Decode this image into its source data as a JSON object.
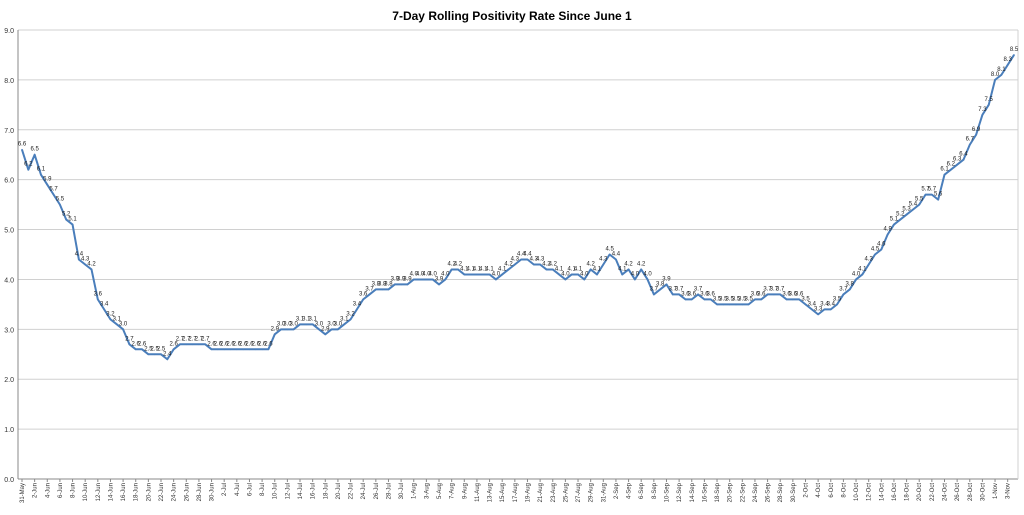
{
  "chart_data": {
    "type": "line",
    "title": "7-Day Rolling Positivity Rate Since June 1",
    "xlabel": "",
    "ylabel": "",
    "ylim": [
      0,
      9
    ],
    "yticks": [
      "0.0",
      "1.0",
      "2.0",
      "3.0",
      "4.0",
      "5.0",
      "6.0",
      "7.0",
      "8.0",
      "9.0"
    ],
    "grid": true,
    "legend": "none",
    "color": "#4a7ebb",
    "x": [
      "31-May",
      "1-Jun",
      "2-Jun",
      "3-Jun",
      "4-Jun",
      "5-Jun",
      "6-Jun",
      "7-Jun",
      "8-Jun",
      "9-Jun",
      "10-Jun",
      "11-Jun",
      "12-Jun",
      "13-Jun",
      "14-Jun",
      "15-Jun",
      "16-Jun",
      "17-Jun",
      "18-Jun",
      "19-Jun",
      "20-Jun",
      "21-Jun",
      "22-Jun",
      "23-Jun",
      "24-Jun",
      "25-Jun",
      "26-Jun",
      "27-Jun",
      "28-Jun",
      "29-Jun",
      "30-Jun",
      "1-Jul",
      "2-Jul",
      "3-Jul",
      "4-Jul",
      "5-Jul",
      "6-Jul",
      "7-Jul",
      "8-Jul",
      "9-Jul",
      "10-Jul",
      "11-Jul",
      "12-Jul",
      "13-Jul",
      "14-Jul",
      "15-Jul",
      "16-Jul",
      "17-Jul",
      "18-Jul",
      "19-Jul",
      "20-Jul",
      "21-Jul",
      "22-Jul",
      "23-Jul",
      "24-Jul",
      "25-Jul",
      "26-Jul",
      "27-Jul",
      "28-Jul",
      "29-Jul",
      "30-Jul",
      "31-Jul",
      "1-Aug",
      "2-Aug",
      "3-Aug",
      "4-Aug",
      "5-Aug",
      "6-Aug",
      "7-Aug",
      "8-Aug",
      "9-Aug",
      "10-Aug",
      "11-Aug",
      "12-Aug",
      "13-Aug",
      "14-Aug",
      "15-Aug",
      "16-Aug",
      "17-Aug",
      "18-Aug",
      "19-Aug",
      "20-Aug",
      "21-Aug",
      "22-Aug",
      "23-Aug",
      "24-Aug",
      "25-Aug",
      "26-Aug",
      "27-Aug",
      "28-Aug",
      "29-Aug",
      "30-Aug",
      "31-Aug",
      "1-Sep",
      "2-Sep",
      "3-Sep",
      "4-Sep",
      "5-Sep",
      "6-Sep",
      "7-Sep",
      "8-Sep",
      "9-Sep",
      "10-Sep",
      "11-Sep",
      "12-Sep",
      "13-Sep",
      "14-Sep",
      "15-Sep",
      "16-Sep",
      "17-Sep",
      "18-Sep",
      "19-Sep",
      "20-Sep",
      "21-Sep",
      "22-Sep",
      "23-Sep",
      "24-Sep",
      "25-Sep",
      "26-Sep",
      "27-Sep",
      "28-Sep",
      "29-Sep",
      "30-Sep",
      "1-Oct",
      "2-Oct",
      "3-Oct",
      "4-Oct",
      "5-Oct",
      "6-Oct",
      "7-Oct",
      "8-Oct",
      "9-Oct",
      "10-Oct",
      "11-Oct",
      "12-Oct",
      "13-Oct",
      "14-Oct",
      "15-Oct",
      "16-Oct",
      "17-Oct",
      "18-Oct",
      "19-Oct",
      "20-Oct",
      "21-Oct",
      "22-Oct",
      "23-Oct",
      "24-Oct",
      "25-Oct",
      "26-Oct",
      "27-Oct",
      "28-Oct",
      "29-Oct",
      "30-Oct",
      "31-Oct",
      "1-Nov",
      "2-Nov",
      "3-Nov",
      "4-Nov"
    ],
    "xticks": [
      "31-May",
      "2-Jun",
      "4-Jun",
      "6-Jun",
      "8-Jun",
      "10-Jun",
      "12-Jun",
      "14-Jun",
      "16-Jun",
      "18-Jun",
      "20-Jun",
      "22-Jun",
      "24-Jun",
      "26-Jun",
      "28-Jun",
      "30-Jun",
      "2-Jul",
      "4-Jul",
      "6-Jul",
      "8-Jul",
      "10-Jul",
      "12-Jul",
      "14-Jul",
      "16-Jul",
      "18-Jul",
      "20-Jul",
      "22-Jul",
      "24-Jul",
      "26-Jul",
      "28-Jul",
      "30-Jul",
      "1-Aug",
      "3-Aug",
      "5-Aug",
      "7-Aug",
      "9-Aug",
      "11-Aug",
      "13-Aug",
      "15-Aug",
      "17-Aug",
      "19-Aug",
      "21-Aug",
      "23-Aug",
      "25-Aug",
      "27-Aug",
      "29-Aug",
      "31-Aug",
      "2-Sep",
      "4-Sep",
      "6-Sep",
      "8-Sep",
      "10-Sep",
      "12-Sep",
      "14-Sep",
      "16-Sep",
      "18-Sep",
      "20-Sep",
      "22-Sep",
      "24-Sep",
      "26-Sep",
      "28-Sep",
      "30-Sep",
      "2-Oct",
      "4-Oct",
      "6-Oct",
      "8-Oct",
      "10-Oct",
      "12-Oct",
      "14-Oct",
      "16-Oct",
      "18-Oct",
      "20-Oct",
      "22-Oct",
      "24-Oct",
      "26-Oct",
      "28-Oct",
      "30-Oct",
      "1-Nov",
      "3-Nov"
    ],
    "series": [
      {
        "values": [
          6.6,
          6.2,
          6.5,
          6.1,
          5.9,
          5.7,
          5.5,
          5.2,
          5.1,
          4.4,
          4.3,
          4.2,
          3.6,
          3.4,
          3.2,
          3.1,
          3.0,
          2.7,
          2.6,
          2.6,
          2.5,
          2.5,
          2.5,
          2.4,
          2.6,
          2.7,
          2.7,
          2.7,
          2.7,
          2.7,
          2.6,
          2.6,
          2.6,
          2.6,
          2.6,
          2.6,
          2.6,
          2.6,
          2.6,
          2.6,
          2.9,
          3.0,
          3.0,
          3.0,
          3.1,
          3.1,
          3.1,
          3.0,
          2.9,
          3.0,
          3.0,
          3.1,
          3.2,
          3.4,
          3.6,
          3.7,
          3.8,
          3.8,
          3.8,
          3.9,
          3.9,
          3.9,
          4.0,
          4.0,
          4.0,
          4.0,
          3.9,
          4.0,
          4.2,
          4.2,
          4.1,
          4.1,
          4.1,
          4.1,
          4.1,
          4.0,
          4.1,
          4.2,
          4.3,
          4.4,
          4.4,
          4.3,
          4.3,
          4.2,
          4.2,
          4.1,
          4.0,
          4.1,
          4.1,
          4.0,
          4.2,
          4.1,
          4.3,
          4.5,
          4.4,
          4.1,
          4.2,
          4.0,
          4.2,
          4.0,
          3.7,
          3.8,
          3.9,
          3.7,
          3.7,
          3.6,
          3.6,
          3.7,
          3.6,
          3.6,
          3.5,
          3.5,
          3.5,
          3.5,
          3.5,
          3.5,
          3.6,
          3.6,
          3.7,
          3.7,
          3.7,
          3.6,
          3.6,
          3.6,
          3.5,
          3.4,
          3.3,
          3.4,
          3.4,
          3.5,
          3.7,
          3.8,
          4.0,
          4.1,
          4.3,
          4.5,
          4.6,
          4.9,
          5.1,
          5.2,
          5.3,
          5.4,
          5.5,
          5.7,
          5.7,
          5.6,
          6.1,
          6.2,
          6.3,
          6.4,
          6.7,
          6.9,
          7.3,
          7.5,
          8.0,
          8.1,
          8.3,
          8.5
        ],
        "labels": [
          "6.6",
          "6.2",
          "6.5",
          "6.1",
          "5.9",
          "5.7",
          "5.5",
          "5.2",
          "5.1",
          "4.4",
          "4.3",
          "4.2",
          "3.6",
          "3.4",
          "3.2",
          "3.1",
          "3.0",
          "2.7",
          "2.6",
          "2.6",
          "2.5",
          "2.5",
          "2.5",
          "2.4",
          "2.6",
          "2.7",
          "2.7",
          "2.7",
          "2.7",
          "2.7",
          "2.6",
          "2.6",
          "2.6",
          "2.6",
          "2.6",
          "2.6",
          "2.6",
          "2.6",
          "2.6",
          "2.6",
          "2.9",
          "3.0",
          "3.0",
          "3.0",
          "3.1",
          "3.1",
          "3.1",
          "3.0",
          "2.9",
          "3.0",
          "3.0",
          "3.1",
          "3.2",
          "3.4",
          "3.6",
          "3.7",
          "3.8",
          "3.8",
          "3.8",
          "3.9",
          "3.9",
          "3.9",
          "4.0",
          "4.0",
          "4.0",
          "4.0",
          "3.9",
          "4.0",
          "4.2",
          "4.2",
          "4.1",
          "4.1",
          "4.1",
          "4.1",
          "4.1",
          "4.0",
          "4.1",
          "4.2",
          "4.3",
          "4.4",
          "4.4",
          "4.3",
          "4.3",
          "4.2",
          "4.2",
          "4.1",
          "4.0",
          "4.1",
          "4.1",
          "4.0",
          "4.2",
          "4.1",
          "4.3",
          "4.5",
          "4.4",
          "4.1",
          "4.2",
          "4.0",
          "4.2",
          "4.0",
          "3.7",
          "3.8",
          "3.9",
          "3.7",
          "3.7",
          "3.6",
          "3.6",
          "3.7",
          "3.6",
          "3.6",
          "3.5",
          "3.5",
          "3.5",
          "3.5",
          "3.5",
          "3.5",
          "3.6",
          "3.6",
          "3.7",
          "3.7",
          "3.7",
          "3.6",
          "3.6",
          "3.6",
          "3.5",
          "3.4",
          "3.3",
          "3.4",
          "3.4",
          "3.5",
          "3.7",
          "3.8",
          "4.0",
          "4.1",
          "4.3",
          "4.5",
          "4.6",
          "4.9",
          "5.1",
          "5.2",
          "5.3",
          "5.4",
          "5.5",
          "5.7",
          "5.7",
          "5.6",
          "6.1",
          "6.2",
          "6.3",
          "6.4",
          "6.7",
          "6.9",
          "7.3",
          "7.5",
          "8.0",
          "8.1",
          "8.3",
          "8.5"
        ]
      }
    ]
  }
}
